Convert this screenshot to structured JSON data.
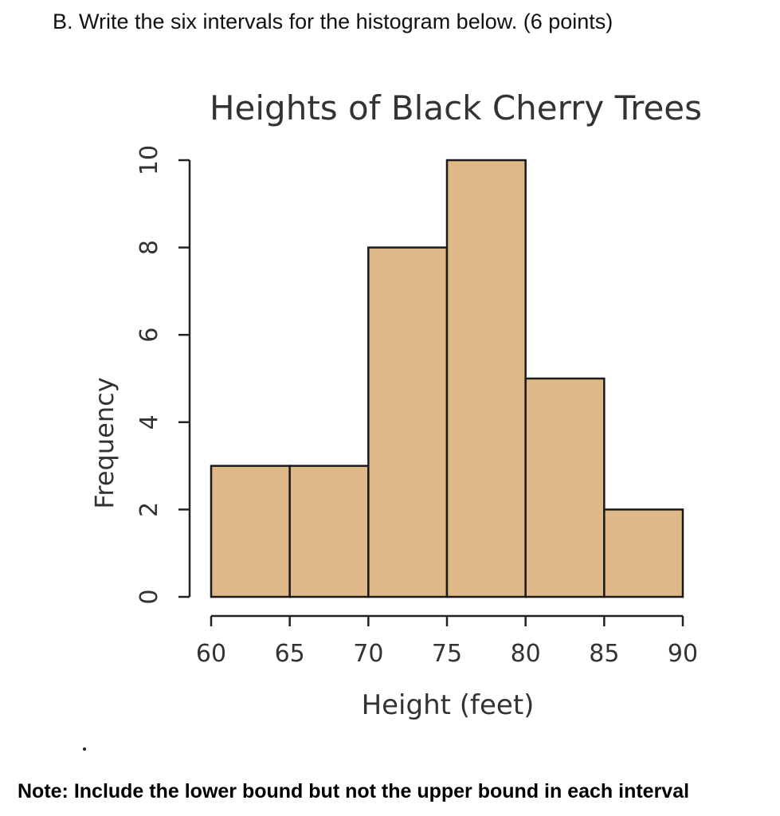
{
  "question": {
    "text": "B. Write the six intervals for the histogram below. (6 points)"
  },
  "note": {
    "text": "Note: Include the lower bound but not the upper bound in each interval"
  },
  "colors": {
    "bar_fill": "#DEB887",
    "bar_stroke": "#1a1a1a",
    "text": "#333333"
  },
  "chart_data": {
    "type": "bar",
    "title": "Heights of Black Cherry Trees",
    "xlabel": "Height (feet)",
    "ylabel": "Frequency",
    "bins": [
      {
        "from": 60,
        "to": 65,
        "count": 3
      },
      {
        "from": 65,
        "to": 70,
        "count": 3
      },
      {
        "from": 70,
        "to": 75,
        "count": 8
      },
      {
        "from": 75,
        "to": 80,
        "count": 10
      },
      {
        "from": 80,
        "to": 85,
        "count": 5
      },
      {
        "from": 85,
        "to": 90,
        "count": 2
      }
    ],
    "xticks": [
      60,
      65,
      70,
      75,
      80,
      85,
      90
    ],
    "yticks": [
      0,
      2,
      4,
      6,
      8,
      10
    ],
    "xlim": [
      60,
      90
    ],
    "ylim": [
      0,
      10
    ],
    "grid": false,
    "legend": "none"
  }
}
